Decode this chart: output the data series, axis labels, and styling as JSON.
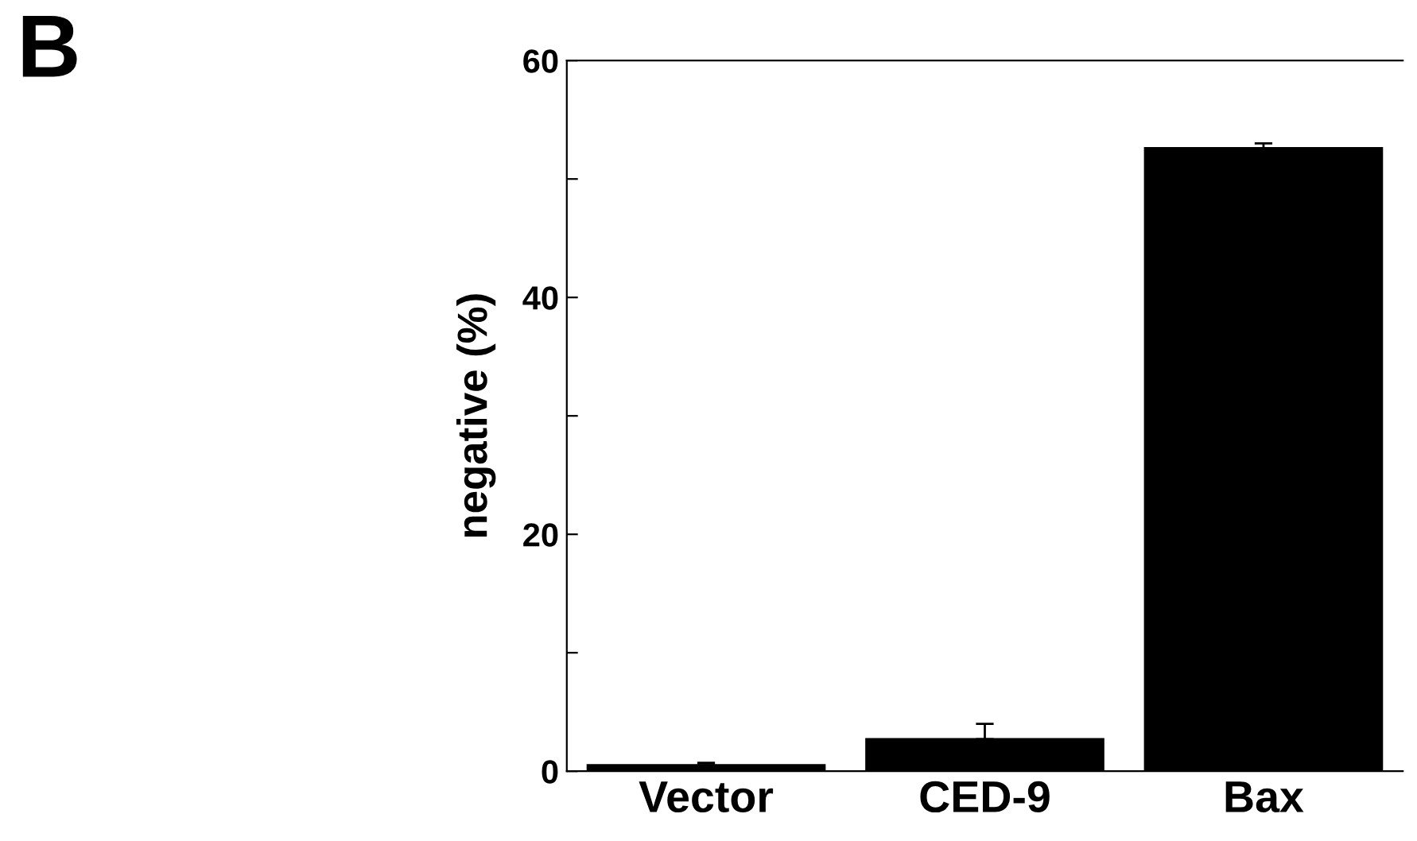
{
  "chart_data": {
    "type": "bar",
    "ylabel": "negative (%)",
    "annotations": [
      "B"
    ],
    "categories": [
      "Vector",
      "CED-9",
      "Bax"
    ],
    "values": [
      0.5,
      2.7,
      52.6
    ],
    "errors": [
      0.2,
      1.3,
      0.4
    ],
    "color": "#000000",
    "ylim": [
      0,
      60
    ],
    "yticks": [
      0,
      {
        "value": 10,
        "label": null
      },
      20,
      {
        "value": 30,
        "label": null
      },
      40,
      {
        "value": 50,
        "label": null
      },
      60
    ],
    "grid": false,
    "legend": false
  }
}
